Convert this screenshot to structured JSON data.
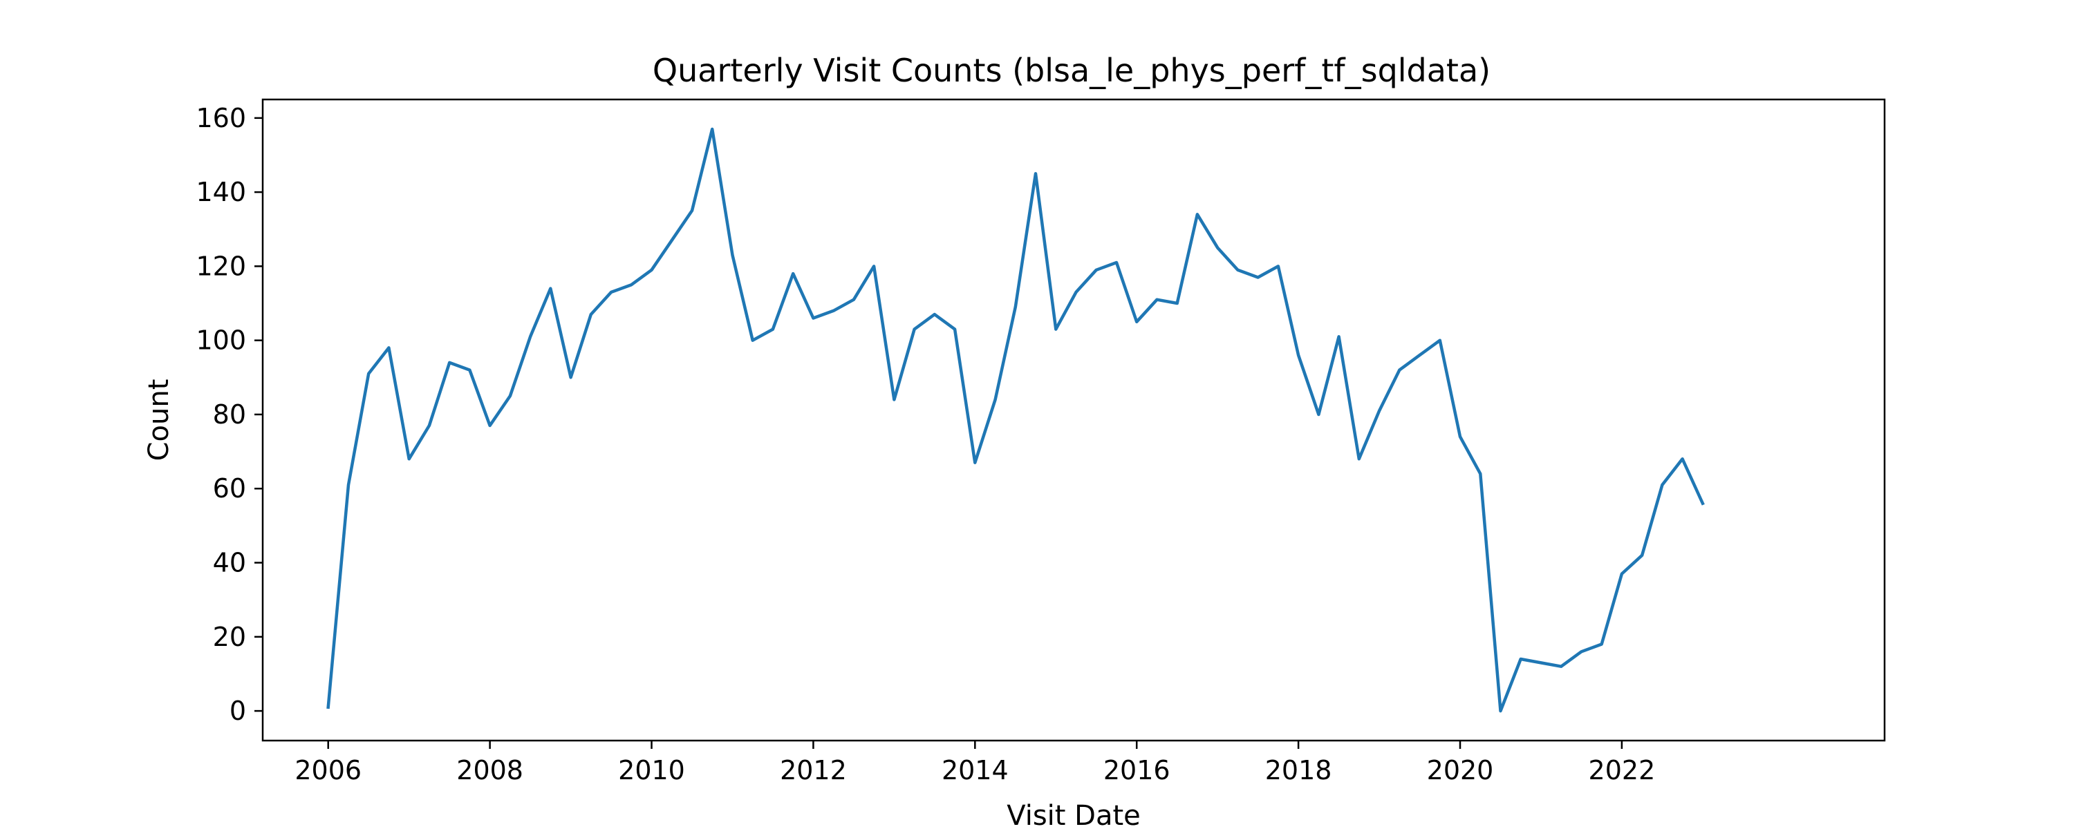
{
  "chart_data": {
    "type": "line",
    "title": "Quarterly Visit Counts (blsa_le_phys_perf_tf_sqldata)",
    "xlabel": "Visit Date",
    "ylabel": "Count",
    "xlim": [
      2005.19,
      2025.25
    ],
    "ylim": [
      -8,
      165
    ],
    "xticks": [
      2006,
      2008,
      2010,
      2012,
      2014,
      2016,
      2018,
      2020,
      2022
    ],
    "yticks": [
      0,
      20,
      40,
      60,
      80,
      100,
      120,
      140,
      160
    ],
    "grid": false,
    "line_color": "#1f77b4",
    "series": [
      {
        "x": [
          "2006-01-01",
          "2006-04-01",
          "2006-07-01",
          "2006-10-01",
          "2007-01-01",
          "2007-04-01",
          "2007-07-01",
          "2007-10-01",
          "2008-01-01",
          "2008-04-01",
          "2008-07-01",
          "2008-10-01",
          "2009-01-01",
          "2009-04-01",
          "2009-07-01",
          "2009-10-01",
          "2010-01-01",
          "2010-04-01",
          "2010-07-01",
          "2010-10-01",
          "2011-01-01",
          "2011-04-01",
          "2011-07-01",
          "2011-10-01",
          "2012-01-01",
          "2012-04-01",
          "2012-07-01",
          "2012-10-01",
          "2013-01-01",
          "2013-04-01",
          "2013-07-01",
          "2013-10-01",
          "2014-01-01",
          "2014-04-01",
          "2014-07-01",
          "2014-10-01",
          "2015-01-01",
          "2015-04-01",
          "2015-07-01",
          "2015-10-01",
          "2016-01-01",
          "2016-04-01",
          "2016-07-01",
          "2016-10-01",
          "2017-01-01",
          "2017-04-01",
          "2017-07-01",
          "2017-10-01",
          "2018-01-01",
          "2018-04-01",
          "2018-07-01",
          "2018-10-01",
          "2019-01-01",
          "2019-04-01",
          "2019-07-01",
          "2019-10-01",
          "2020-01-01",
          "2020-04-01",
          "2020-07-01",
          "2020-10-01",
          "2021-01-01",
          "2021-04-01",
          "2021-07-01",
          "2021-10-01",
          "2022-01-01",
          "2022-04-01",
          "2022-07-01",
          "2022-10-01",
          "2023-01-01"
        ],
        "values": [
          1,
          61,
          91,
          98,
          68,
          77,
          94,
          92,
          77,
          85,
          101,
          114,
          90,
          107,
          113,
          115,
          119,
          127,
          135,
          157,
          123,
          100,
          103,
          118,
          106,
          108,
          111,
          120,
          84,
          103,
          107,
          103,
          67,
          84,
          109,
          145,
          103,
          113,
          119,
          121,
          105,
          111,
          110,
          134,
          125,
          119,
          117,
          120,
          96,
          80,
          101,
          68,
          81,
          92,
          96,
          100,
          74,
          64,
          0,
          14,
          13,
          12,
          16,
          18,
          37,
          42,
          61,
          68,
          56
        ]
      }
    ]
  }
}
